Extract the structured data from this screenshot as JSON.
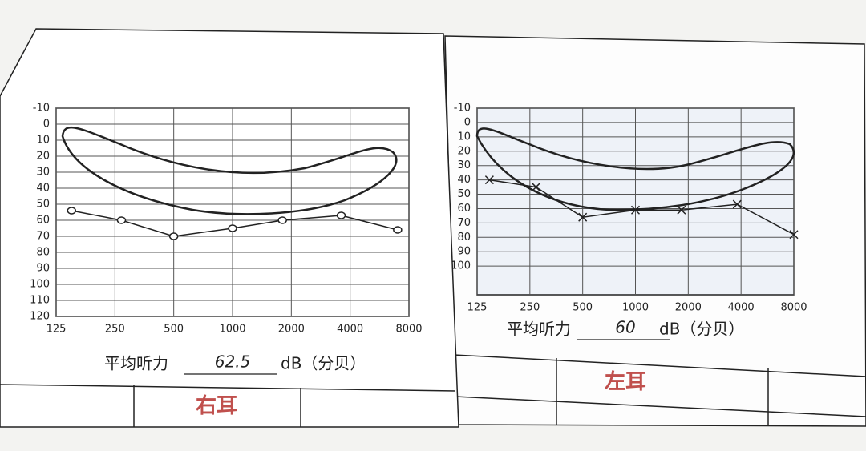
{
  "chart_data": [
    {
      "type": "line",
      "ear": "右耳",
      "caption": "平均听力",
      "average": 62.5,
      "unit": "dB（分贝）",
      "x": [
        150,
        270,
        500,
        1000,
        1800,
        3600,
        7000
      ],
      "series": [
        {
          "color": "#222222",
          "marker": "o",
          "values": [
            54,
            60,
            70,
            65,
            60,
            57,
            66
          ]
        }
      ],
      "xlim": [
        125,
        8000
      ],
      "xticks": [
        125,
        250,
        500,
        1000,
        2000,
        4000,
        8000
      ],
      "log_x": true,
      "ylim": [
        -10,
        120
      ],
      "yticks": [
        -10,
        0,
        10,
        20,
        30,
        40,
        50,
        60,
        70,
        80,
        90,
        100,
        110,
        120
      ],
      "inverted_y": true,
      "grid": true
    },
    {
      "type": "line",
      "ear": "左耳",
      "caption": "平均听力",
      "average": 60,
      "unit": "dB（分贝）",
      "x": [
        147,
        271,
        500,
        1000,
        1830,
        3800,
        8000
      ],
      "series": [
        {
          "color": "#222222",
          "marker": "x",
          "values": [
            40,
            45,
            66,
            61,
            61,
            57,
            78
          ]
        }
      ],
      "xlim": [
        125,
        8000
      ],
      "xticks": [
        125,
        250,
        500,
        1000,
        2000,
        4000,
        8000
      ],
      "log_x": true,
      "ylim": [
        -10,
        120
      ],
      "yticks": [
        -10,
        0,
        10,
        20,
        30,
        40,
        50,
        60,
        70,
        80,
        90,
        100
      ],
      "inverted_y": true,
      "grid": true
    }
  ]
}
